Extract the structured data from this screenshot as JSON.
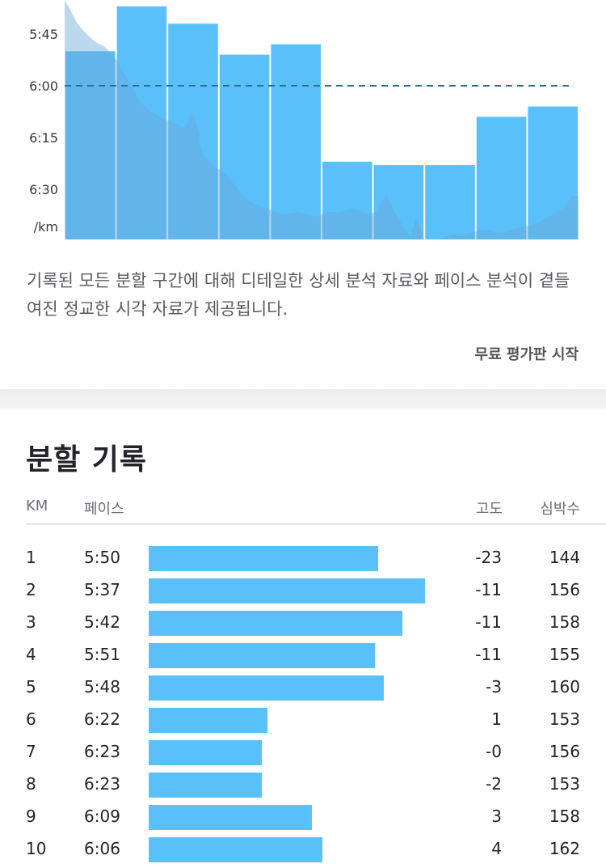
{
  "chart_data": {
    "type": "bar",
    "y_axis_inverted": true,
    "y_tick_labels": [
      "5:45",
      "6:00",
      "6:15",
      "6:30"
    ],
    "y_ticks_seconds": [
      345,
      360,
      375,
      390
    ],
    "y_unit_label": "/km",
    "average_line_pace": "6:00",
    "average_line_seconds": 360,
    "bar_color": "#5ac0fa",
    "avg_line_color": "#2a6f95",
    "elevation_fill_color": "#6aa8d6",
    "pace_seconds": [
      350,
      337,
      342,
      351,
      348,
      382,
      383,
      383,
      369,
      366
    ]
  },
  "description": "기록된 모든 분할 구간에 대해 디테일한 상세 분석 자료와 페이스 분석이 곁들여진 정교한 시각 자료가 제공됩니다.",
  "trial_link": "무료 평가판 시작",
  "splits": {
    "title": "분할 기록",
    "headers": {
      "km": "KM",
      "pace": "페이스",
      "elevation": "고도",
      "heart_rate": "심박수"
    },
    "rows": [
      {
        "km": "1",
        "pace": "5:50",
        "elevation": "-23",
        "heart_rate": "144",
        "bar_fraction": 0.83
      },
      {
        "km": "2",
        "pace": "5:37",
        "elevation": "-11",
        "heart_rate": "156",
        "bar_fraction": 1.0
      },
      {
        "km": "3",
        "pace": "5:42",
        "elevation": "-11",
        "heart_rate": "158",
        "bar_fraction": 0.918
      },
      {
        "km": "4",
        "pace": "5:51",
        "elevation": "-11",
        "heart_rate": "155",
        "bar_fraction": 0.819
      },
      {
        "km": "5",
        "pace": "5:48",
        "elevation": "-3",
        "heart_rate": "160",
        "bar_fraction": 0.851
      },
      {
        "km": "6",
        "pace": "6:22",
        "elevation": "1",
        "heart_rate": "153",
        "bar_fraction": 0.43
      },
      {
        "km": "7",
        "pace": "6:23",
        "elevation": "-0",
        "heart_rate": "156",
        "bar_fraction": 0.409
      },
      {
        "km": "8",
        "pace": "6:23",
        "elevation": "-2",
        "heart_rate": "153",
        "bar_fraction": 0.409
      },
      {
        "km": "9",
        "pace": "6:09",
        "elevation": "3",
        "heart_rate": "158",
        "bar_fraction": 0.591
      },
      {
        "km": "10",
        "pace": "6:06",
        "elevation": "4",
        "heart_rate": "162",
        "bar_fraction": 0.629
      }
    ]
  }
}
